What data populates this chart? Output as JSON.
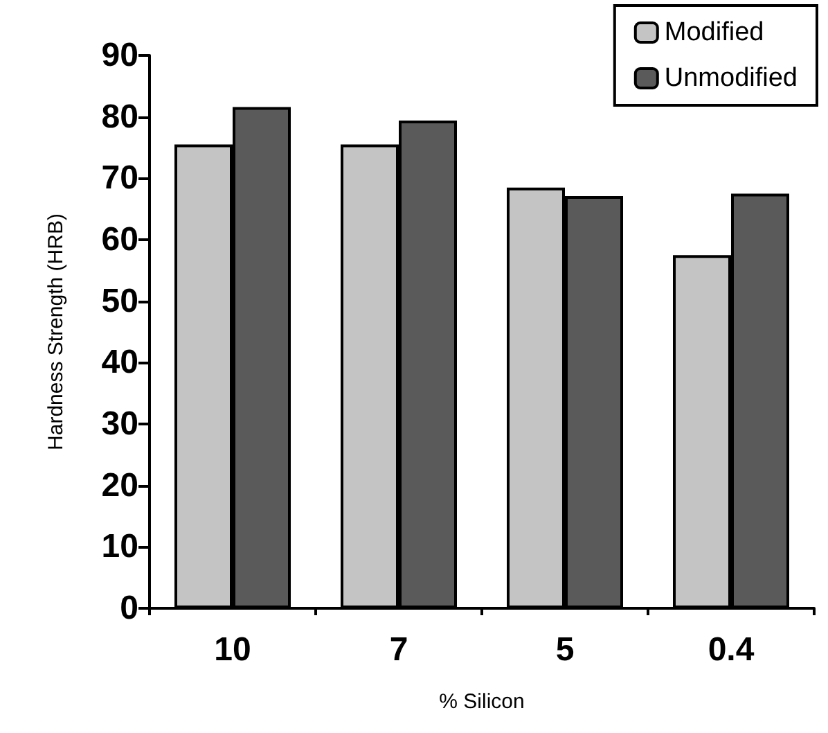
{
  "chart_data": {
    "type": "bar",
    "xlabel": "% Silicon",
    "ylabel": "Hardness Strength (HRB)",
    "categories": [
      "10",
      "7",
      "5",
      "0.4"
    ],
    "series": [
      {
        "name": "Modified",
        "color": "#c4c4c4",
        "values": [
          75.5,
          75.5,
          68.5,
          57.5
        ]
      },
      {
        "name": "Unmodified",
        "color": "#5a5a5a",
        "values": [
          81.6,
          79.4,
          67.1,
          67.5
        ]
      }
    ],
    "ylim": [
      0,
      90
    ],
    "yticks": [
      0,
      10,
      20,
      30,
      40,
      50,
      60,
      70,
      80,
      90
    ],
    "grid": false,
    "legend": "top right"
  }
}
